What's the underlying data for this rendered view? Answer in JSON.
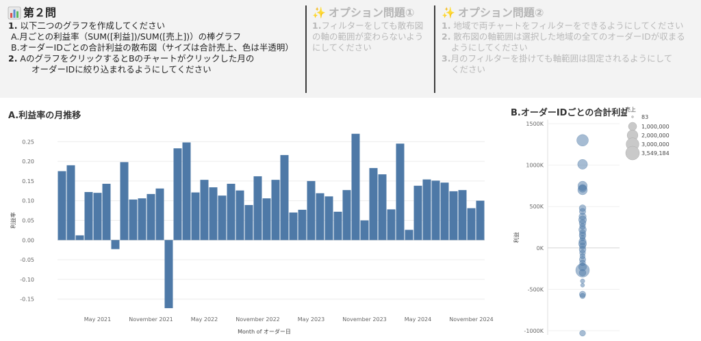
{
  "header": {
    "q2": {
      "title": "第２問",
      "lines": [
        {
          "num": "1.",
          "text": " 以下二つのグラフを作成してください"
        },
        {
          "num": "",
          "text": "A.月ごとの利益率（SUM([利益])/SUM([売上])）の棒グラフ"
        },
        {
          "num": "",
          "text": "B.オーダーIDごとの合計利益の散布図（サイズは合計売上、色は半透明）"
        },
        {
          "num": "2.",
          "text": " AのグラフをクリックするとBのチャートがクリックした月の"
        },
        {
          "num": "",
          "text": "オーダーIDに絞り込まれるようにしてください"
        }
      ]
    },
    "opt1": {
      "title": "オプション問題①",
      "lines": [
        {
          "num": "1.",
          "text": "フィルターをしても散布図"
        },
        {
          "num": "",
          "text": "の軸の範囲が変わらないよう"
        },
        {
          "num": "",
          "text": "にしてください"
        }
      ]
    },
    "opt2": {
      "title": "オプション問題②",
      "lines": [
        {
          "num": "1.",
          "text": " 地域で両チャートをフィルターをできるようにしてください"
        },
        {
          "num": "2.",
          "text": " 散布図の軸範囲は選択した地域の全てのオーダーIDが収まる"
        },
        {
          "num": "",
          "text": "ようにしてください"
        },
        {
          "num": "3.",
          "text": "月のフィルターを掛けても軸範囲は固定されるようにして"
        },
        {
          "num": "",
          "text": "ください"
        }
      ]
    },
    "icons": {
      "chart": "bar-chart-icon",
      "sparkle": "sparkles-icon"
    }
  },
  "chart_data": [
    {
      "type": "bar",
      "title": "A.利益率の月推移",
      "xlabel": "Month of オーダー日",
      "ylabel": "利益率",
      "ylim": [
        -0.18,
        0.28
      ],
      "yticks": [
        0.25,
        0.2,
        0.15,
        0.1,
        0.05,
        0.0,
        -0.05,
        -0.1,
        -0.15
      ],
      "ytick_labels": [
        "0.25",
        "0.20",
        "0.15",
        "0.10",
        "0.05",
        "0.00",
        "-0.05",
        "-0.10",
        "-0.15"
      ],
      "xtick_labels": [
        {
          "label": "May 2021",
          "index": 4
        },
        {
          "label": "November 2021",
          "index": 10
        },
        {
          "label": "May 2022",
          "index": 16
        },
        {
          "label": "November 2022",
          "index": 22
        },
        {
          "label": "May 2023",
          "index": 28
        },
        {
          "label": "November 2023",
          "index": 34
        },
        {
          "label": "May 2024",
          "index": 40
        },
        {
          "label": "November 2024",
          "index": 46
        }
      ],
      "categories": [
        "2021-01",
        "2021-02",
        "2021-03",
        "2021-04",
        "2021-05",
        "2021-06",
        "2021-07",
        "2021-08",
        "2021-09",
        "2021-10",
        "2021-11",
        "2021-12",
        "2022-01",
        "2022-02",
        "2022-03",
        "2022-04",
        "2022-05",
        "2022-06",
        "2022-07",
        "2022-08",
        "2022-09",
        "2022-10",
        "2022-11",
        "2022-12",
        "2023-01",
        "2023-02",
        "2023-03",
        "2023-04",
        "2023-05",
        "2023-06",
        "2023-07",
        "2023-08",
        "2023-09",
        "2023-10",
        "2023-11",
        "2023-12",
        "2024-01",
        "2024-02",
        "2024-03",
        "2024-04",
        "2024-05",
        "2024-06",
        "2024-07",
        "2024-08",
        "2024-09",
        "2024-10",
        "2024-11",
        "2024-12"
      ],
      "values": [
        0.175,
        0.19,
        0.012,
        0.122,
        0.12,
        0.143,
        -0.023,
        0.198,
        0.103,
        0.106,
        0.117,
        0.131,
        -0.173,
        0.233,
        0.248,
        0.121,
        0.153,
        0.134,
        0.113,
        0.143,
        0.126,
        0.089,
        0.162,
        0.106,
        0.153,
        0.216,
        0.07,
        0.077,
        0.15,
        0.119,
        0.111,
        0.072,
        0.127,
        0.27,
        0.05,
        0.183,
        0.167,
        0.078,
        0.245,
        0.026,
        0.138,
        0.154,
        0.151,
        0.146,
        0.124,
        0.127,
        0.081,
        0.1
      ],
      "color": "#4e79a7",
      "grid": true
    },
    {
      "type": "scatter",
      "title": "B.オーダーIDごとの合計利益",
      "ylabel": "利益",
      "ylim": [
        -1050000,
        1550000
      ],
      "yticks": [
        1500000,
        1000000,
        500000,
        0,
        -500000,
        -1000000
      ],
      "ytick_labels": [
        "1500K",
        "1000K",
        "500K",
        "0K",
        "-500K",
        "-1000K"
      ],
      "legend": {
        "title": "売上",
        "entries": [
          "83",
          "1,000,000",
          "2,000,000",
          "3,000,000",
          "3,549,184"
        ],
        "sizes": [
          83,
          1000000,
          2000000,
          3000000,
          3549184
        ]
      },
      "color": "#4e79a7",
      "opacity": 0.5,
      "points": [
        {
          "y": 1300000,
          "size": 2400000
        },
        {
          "y": 1010000,
          "size": 1600000
        },
        {
          "y": 750000,
          "size": 1400000
        },
        {
          "y": 700000,
          "size": 1500000
        },
        {
          "y": 720000,
          "size": 900000
        },
        {
          "y": 480000,
          "size": 600000
        },
        {
          "y": 440000,
          "size": 500000
        },
        {
          "y": 380000,
          "size": 700000
        },
        {
          "y": 340000,
          "size": 900000
        },
        {
          "y": 300000,
          "size": 600000
        },
        {
          "y": 260000,
          "size": 400000
        },
        {
          "y": 220000,
          "size": 800000
        },
        {
          "y": 180000,
          "size": 500000
        },
        {
          "y": 150000,
          "size": 600000
        },
        {
          "y": 120000,
          "size": 300000
        },
        {
          "y": 80000,
          "size": 700000
        },
        {
          "y": 50000,
          "size": 900000
        },
        {
          "y": 20000,
          "size": 500000
        },
        {
          "y": -20000,
          "size": 600000
        },
        {
          "y": -60000,
          "size": 400000
        },
        {
          "y": -100000,
          "size": 300000
        },
        {
          "y": -140000,
          "size": 500000
        },
        {
          "y": -180000,
          "size": 400000
        },
        {
          "y": -230000,
          "size": 900000
        },
        {
          "y": -270000,
          "size": 3549184
        },
        {
          "y": -300000,
          "size": 600000
        },
        {
          "y": -400000,
          "size": 150000
        },
        {
          "y": -450000,
          "size": 100000
        },
        {
          "y": -560000,
          "size": 500000
        },
        {
          "y": -580000,
          "size": 300000
        },
        {
          "y": -1030000,
          "size": 400000
        }
      ]
    }
  ]
}
